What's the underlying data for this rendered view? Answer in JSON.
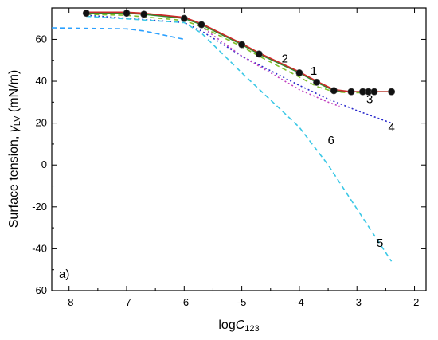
{
  "chart_data": {
    "type": "line",
    "panel_label": "a)",
    "xlabel": {
      "main": "log",
      "italic": "C",
      "sub": "123"
    },
    "ylabel": {
      "main": "Surface tension, ",
      "italic": "γ",
      "sub": "LV",
      "unit": " (mN/m)"
    },
    "xlim": [
      -8.3,
      -1.8
    ],
    "ylim": [
      -60,
      75
    ],
    "xticks": [
      -8,
      -7,
      -6,
      -5,
      -4,
      -3,
      -2
    ],
    "yticks": [
      -60,
      -40,
      -20,
      0,
      20,
      40,
      60
    ],
    "xtick_labels": [
      "-8",
      "-7",
      "-6",
      "-5",
      "-4",
      "-3",
      "-2"
    ],
    "ytick_labels": [
      "-60",
      "-40",
      "-20",
      "0",
      "20",
      "40",
      "60"
    ],
    "grid": false,
    "series": [
      {
        "name": "1",
        "style": "solid",
        "color": "#2e8b2e",
        "x": [
          -7.7,
          -7.0,
          -6.7,
          -6.0,
          -5.7,
          -5.0,
          -4.7,
          -4.0,
          -3.7,
          -3.4,
          -3.1,
          -2.9,
          -2.8,
          -2.7,
          -2.4
        ],
        "y": [
          72.5,
          72.5,
          72,
          70,
          67,
          57.5,
          53,
          44,
          39.5,
          35.5,
          35,
          35,
          35,
          35,
          35
        ]
      },
      {
        "name": "2",
        "style": "solid",
        "color": "#cc2a2a",
        "x": [
          -7.7,
          -7.0,
          -6.7,
          -6.0,
          -5.7,
          -5.0,
          -4.7,
          -4.0,
          -3.7,
          -3.4,
          -3.1,
          -2.9,
          -2.8,
          -2.7,
          -2.4
        ],
        "y": [
          73,
          73,
          72.5,
          70.5,
          67.5,
          58,
          53.5,
          44.5,
          40,
          36,
          35,
          35,
          35,
          35,
          35
        ]
      },
      {
        "name": "3",
        "style": "dashed",
        "color": "#7fbf2a",
        "x": [
          -7.7,
          -7.0,
          -6.0,
          -5.7,
          -5.0,
          -4.7,
          -4.0,
          -3.7,
          -3.4,
          -3.1,
          -2.9
        ],
        "y": [
          72,
          71.5,
          69,
          66,
          56.5,
          52,
          42,
          37.5,
          35,
          34.5,
          34.5
        ]
      },
      {
        "name": "4",
        "style": "dotted",
        "color": "#2a2acc",
        "x": [
          -7.7,
          -6.0,
          -5.7,
          -5.0,
          -4.5,
          -4.0,
          -3.5,
          -3.0,
          -2.4
        ],
        "y": [
          71.5,
          68,
          64,
          52,
          45,
          38,
          31.5,
          26,
          20
        ]
      },
      {
        "name": "5",
        "style": "dashed",
        "color": "#3cc8e6",
        "x": [
          -7.7,
          -6.0,
          -5.7,
          -5.0,
          -4.5,
          -4.0,
          -3.5,
          -3.0,
          -2.4
        ],
        "y": [
          71,
          68,
          63,
          44,
          31,
          18,
          0,
          -21,
          -46
        ]
      },
      {
        "name": "6",
        "style": "dotted",
        "color": "#c040c0",
        "x": [
          -5.7,
          -5.0,
          -4.5,
          -4.0,
          -3.5,
          -3.3
        ],
        "y": [
          66,
          52,
          44,
          36,
          30,
          28
        ]
      },
      {
        "name": "",
        "style": "dashed",
        "color": "#2aa0ff",
        "x": [
          -8.3,
          -7.0,
          -6.7,
          -6.0
        ],
        "y": [
          65.5,
          65,
          64,
          60
        ]
      }
    ],
    "markers": {
      "color": "#111111",
      "x": [
        -7.7,
        -7.0,
        -6.7,
        -6.0,
        -5.7,
        -5.0,
        -4.7,
        -4.0,
        -3.7,
        -3.4,
        -3.1,
        -2.9,
        -2.8,
        -2.7,
        -2.4
      ],
      "y": [
        72.5,
        72.5,
        72,
        70,
        67,
        57.5,
        53,
        44,
        39.5,
        35.5,
        35,
        35,
        35,
        35,
        35
      ]
    },
    "series_labels": [
      {
        "text": "1",
        "x": -3.75,
        "y": 43
      },
      {
        "text": "2",
        "x": -4.25,
        "y": 49
      },
      {
        "text": "3",
        "x": -2.78,
        "y": 29.5
      },
      {
        "text": "4",
        "x": -2.4,
        "y": 16
      },
      {
        "text": "5",
        "x": -2.6,
        "y": -39
      },
      {
        "text": "6",
        "x": -3.45,
        "y": 10
      }
    ]
  }
}
